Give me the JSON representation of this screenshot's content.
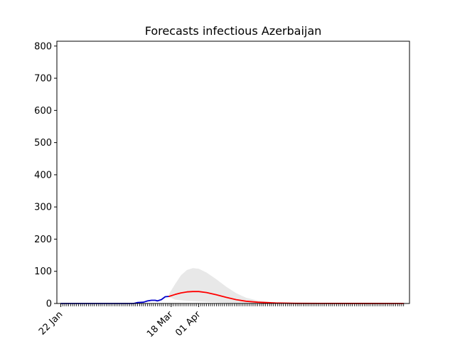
{
  "chart_data": {
    "type": "line",
    "title": "Forecasts infectious Azerbaijan",
    "xlabel": "",
    "ylabel": "",
    "x_start": "2020-01-22",
    "x_end": "2020-07-14",
    "xlim": [
      "2020-01-20",
      "2020-07-17"
    ],
    "ylim": [
      0,
      815
    ],
    "y_ticks": [
      0,
      100,
      200,
      300,
      400,
      500,
      600,
      700,
      800
    ],
    "x_tick_labels": [
      {
        "date": "2020-01-22",
        "label": "22 Jan"
      },
      {
        "date": "2020-03-18",
        "label": "18 Mar"
      },
      {
        "date": "2020-04-01",
        "label": "01 Apr"
      }
    ],
    "grid": false,
    "legend": "none",
    "series": [
      {
        "role": "observed",
        "color": "#0000cc",
        "points": [
          [
            "2020-01-22",
            0
          ],
          [
            "2020-02-28",
            0
          ],
          [
            "2020-03-01",
            3
          ],
          [
            "2020-03-04",
            4
          ],
          [
            "2020-03-06",
            8
          ],
          [
            "2020-03-08",
            10
          ],
          [
            "2020-03-10",
            10
          ],
          [
            "2020-03-11",
            8
          ],
          [
            "2020-03-13",
            12
          ],
          [
            "2020-03-15",
            21
          ],
          [
            "2020-03-17",
            22
          ]
        ]
      },
      {
        "role": "forecast",
        "color": "#ff0000",
        "points": [
          [
            "2020-03-17",
            22
          ],
          [
            "2020-03-20",
            28
          ],
          [
            "2020-03-23",
            33
          ],
          [
            "2020-03-26",
            36
          ],
          [
            "2020-03-29",
            37
          ],
          [
            "2020-04-01",
            37
          ],
          [
            "2020-04-05",
            34
          ],
          [
            "2020-04-10",
            27
          ],
          [
            "2020-04-15",
            19
          ],
          [
            "2020-04-20",
            12
          ],
          [
            "2020-04-25",
            7
          ],
          [
            "2020-05-01",
            4
          ],
          [
            "2020-05-10",
            1.5
          ],
          [
            "2020-05-20",
            0.5
          ],
          [
            "2020-06-01",
            0.2
          ],
          [
            "2020-07-14",
            0
          ]
        ]
      },
      {
        "role": "uncertainty-band",
        "color": "#e8e8e8",
        "upper": [
          [
            "2020-03-17",
            30
          ],
          [
            "2020-03-20",
            60
          ],
          [
            "2020-03-23",
            88
          ],
          [
            "2020-03-26",
            104
          ],
          [
            "2020-03-29",
            110
          ],
          [
            "2020-04-01",
            108
          ],
          [
            "2020-04-05",
            96
          ],
          [
            "2020-04-10",
            75
          ],
          [
            "2020-04-15",
            52
          ],
          [
            "2020-04-20",
            32
          ],
          [
            "2020-04-25",
            18
          ],
          [
            "2020-05-01",
            9
          ],
          [
            "2020-05-10",
            3
          ],
          [
            "2020-05-20",
            1
          ],
          [
            "2020-06-01",
            0.4
          ],
          [
            "2020-07-14",
            0
          ]
        ],
        "lower": [
          [
            "2020-03-17",
            20
          ],
          [
            "2020-03-20",
            12
          ],
          [
            "2020-03-26",
            8
          ],
          [
            "2020-04-05",
            5
          ],
          [
            "2020-04-15",
            2
          ],
          [
            "2020-05-01",
            0.5
          ],
          [
            "2020-07-14",
            0
          ]
        ]
      }
    ]
  }
}
